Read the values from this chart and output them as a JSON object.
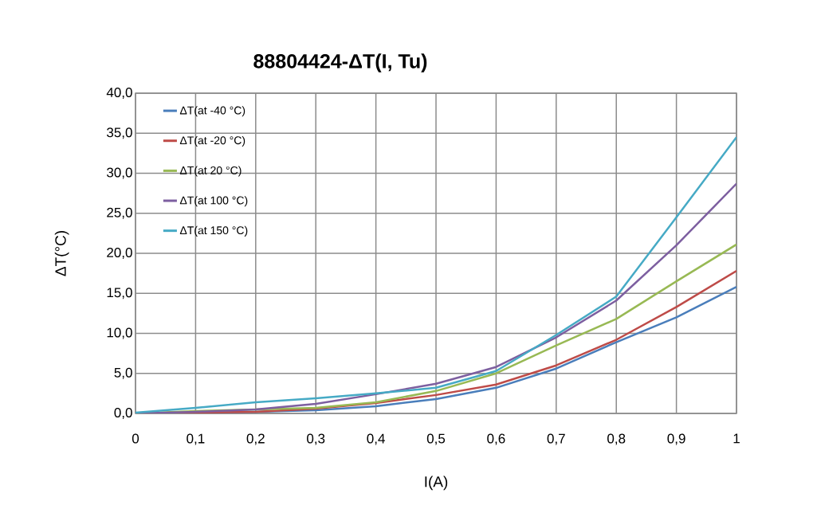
{
  "chart_data": {
    "type": "line",
    "title": "88804424-ΔT(I, Tu)",
    "xlabel": "I(A)",
    "ylabel": "ΔT(°C)",
    "x": [
      0,
      0.1,
      0.2,
      0.3,
      0.4,
      0.5,
      0.6,
      0.7,
      0.8,
      0.9,
      1
    ],
    "series": [
      {
        "name": "ΔT(at -40 °C)",
        "color": "#4a7ebb",
        "values": [
          0,
          0.1,
          0.2,
          0.4,
          0.9,
          1.8,
          3.2,
          5.6,
          8.9,
          12,
          15.8
        ]
      },
      {
        "name": "ΔT(at -20 °C)",
        "color": "#be4b48",
        "values": [
          0,
          0.1,
          0.2,
          0.6,
          1.3,
          2.3,
          3.6,
          6,
          9.2,
          13.3,
          17.8
        ]
      },
      {
        "name": "ΔT(at 20 °C)",
        "color": "#98b954",
        "values": [
          0,
          0.3,
          0.5,
          0.7,
          1.4,
          2.8,
          5,
          8.5,
          11.8,
          16.5,
          21.1
        ]
      },
      {
        "name": "ΔT(at 100 °C)",
        "color": "#7d5fa0",
        "values": [
          0,
          0.2,
          0.5,
          1.2,
          2.4,
          3.7,
          5.8,
          9.5,
          14.1,
          21,
          28.7
        ]
      },
      {
        "name": "ΔT(at 150 °C)",
        "color": "#46aac5",
        "values": [
          0.1,
          0.7,
          1.4,
          1.9,
          2.5,
          3.2,
          5.3,
          9.8,
          14.6,
          24.5,
          34.5
        ]
      }
    ],
    "xlim": [
      0,
      1
    ],
    "ylim": [
      0,
      40
    ],
    "xticks": [
      0,
      {
        "value": 0.1,
        "label": "0,1"
      },
      {
        "value": 0.2,
        "label": "0,2"
      },
      {
        "value": 0.3,
        "label": "0,3"
      },
      {
        "value": 0.4,
        "label": "0,4"
      },
      {
        "value": 0.5,
        "label": "0,5"
      },
      {
        "value": 0.6,
        "label": "0,6"
      },
      {
        "value": 0.7,
        "label": "0,7"
      },
      {
        "value": 0.8,
        "label": "0,8"
      },
      {
        "value": 0.9,
        "label": "0,9"
      },
      1
    ],
    "yticks": [
      {
        "value": 0,
        "label": "0,0"
      },
      {
        "value": 5,
        "label": "5,0"
      },
      {
        "value": 10,
        "label": "10,0"
      },
      {
        "value": 15,
        "label": "15,0"
      },
      {
        "value": 20,
        "label": "20,0"
      },
      {
        "value": 25,
        "label": "25,0"
      },
      {
        "value": 30,
        "label": "30,0"
      },
      {
        "value": 35,
        "label": "35,0"
      },
      {
        "value": 40,
        "label": "40,0"
      }
    ],
    "grid": true,
    "legend": "top left",
    "marker": "none",
    "line_style": "solid"
  }
}
